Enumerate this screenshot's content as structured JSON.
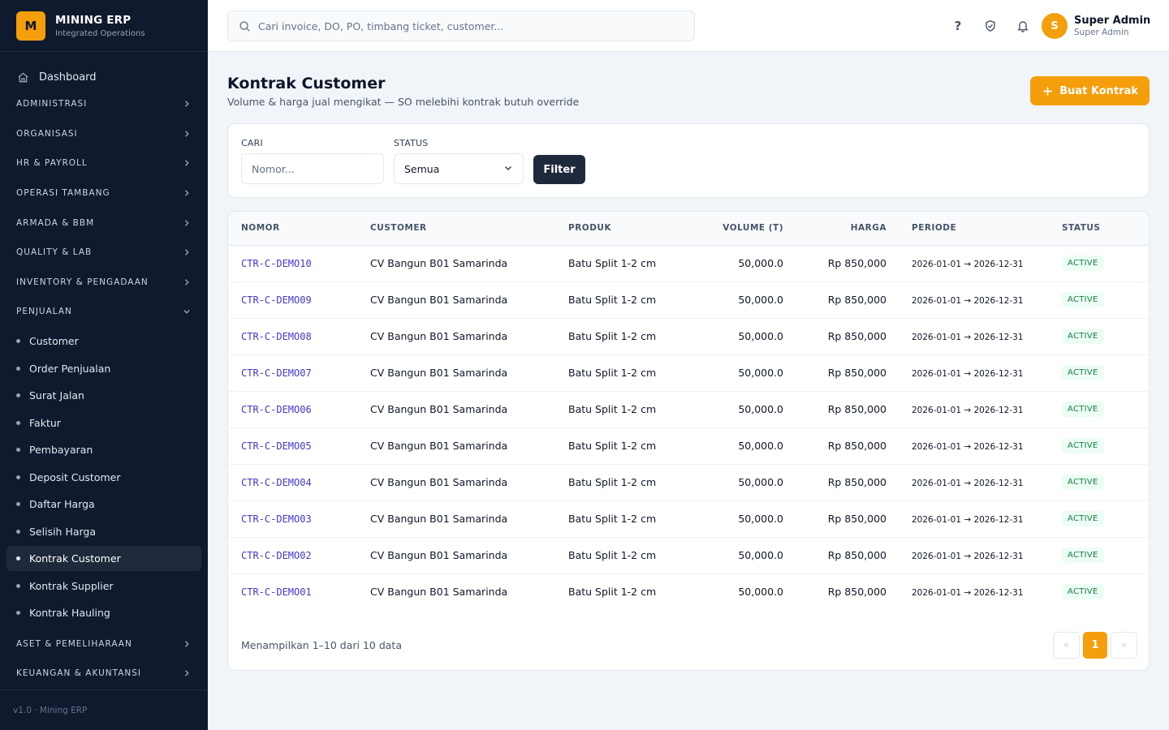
{
  "brand": {
    "logo_letter": "M",
    "name": "MINING ERP",
    "subtitle": "Integrated Operations"
  },
  "sidebar": {
    "dashboard_label": "Dashboard",
    "groups": [
      {
        "label": "ADMINISTRASI"
      },
      {
        "label": "ORGANISASI"
      },
      {
        "label": "HR & PAYROLL"
      },
      {
        "label": "OPERASI TAMBANG"
      },
      {
        "label": "ARMADA & BBM"
      },
      {
        "label": "QUALITY & LAB"
      },
      {
        "label": "INVENTORY & PENGADAAN"
      },
      {
        "label": "PENJUALAN"
      },
      {
        "label": "ASET & PEMELIHARAAN"
      },
      {
        "label": "KEUANGAN & AKUNTANSI"
      }
    ],
    "penjualan_items": [
      {
        "label": "Customer"
      },
      {
        "label": "Order Penjualan"
      },
      {
        "label": "Surat Jalan"
      },
      {
        "label": "Faktur"
      },
      {
        "label": "Pembayaran"
      },
      {
        "label": "Deposit Customer"
      },
      {
        "label": "Daftar Harga"
      },
      {
        "label": "Selisih Harga"
      },
      {
        "label": "Kontrak Customer"
      },
      {
        "label": "Kontrak Supplier"
      },
      {
        "label": "Kontrak Hauling"
      }
    ],
    "active_item": "Kontrak Customer",
    "footer": "v1.0 · Mining ERP"
  },
  "topbar": {
    "search_placeholder": "Cari invoice, DO, PO, timbang ticket, customer...",
    "icons": [
      "help-icon",
      "shield-check-icon",
      "bell-icon"
    ],
    "user": {
      "initial": "S",
      "name": "Super Admin",
      "role": "Super Admin"
    }
  },
  "page": {
    "title": "Kontrak Customer",
    "subtitle": "Volume & harga jual mengikat — SO melebihi kontrak butuh override",
    "create_button": "Buat Kontrak"
  },
  "filter": {
    "search_label": "CARI",
    "search_placeholder": "Nomor...",
    "status_label": "STATUS",
    "status_value": "Semua",
    "filter_button": "Filter"
  },
  "table": {
    "columns": [
      "NOMOR",
      "CUSTOMER",
      "PRODUK",
      "VOLUME (T)",
      "HARGA",
      "PERIODE",
      "STATUS"
    ],
    "rows": [
      {
        "nomor": "CTR-C-DEMO10",
        "customer": "CV Bangun B01 Samarinda",
        "produk": "Batu Split 1-2 cm",
        "volume": "50,000.0",
        "harga": "Rp 850,000",
        "periode": "2026-01-01 → 2026-12-31",
        "status": "ACTIVE"
      },
      {
        "nomor": "CTR-C-DEMO09",
        "customer": "CV Bangun B01 Samarinda",
        "produk": "Batu Split 1-2 cm",
        "volume": "50,000.0",
        "harga": "Rp 850,000",
        "periode": "2026-01-01 → 2026-12-31",
        "status": "ACTIVE"
      },
      {
        "nomor": "CTR-C-DEMO08",
        "customer": "CV Bangun B01 Samarinda",
        "produk": "Batu Split 1-2 cm",
        "volume": "50,000.0",
        "harga": "Rp 850,000",
        "periode": "2026-01-01 → 2026-12-31",
        "status": "ACTIVE"
      },
      {
        "nomor": "CTR-C-DEMO07",
        "customer": "CV Bangun B01 Samarinda",
        "produk": "Batu Split 1-2 cm",
        "volume": "50,000.0",
        "harga": "Rp 850,000",
        "periode": "2026-01-01 → 2026-12-31",
        "status": "ACTIVE"
      },
      {
        "nomor": "CTR-C-DEMO06",
        "customer": "CV Bangun B01 Samarinda",
        "produk": "Batu Split 1-2 cm",
        "volume": "50,000.0",
        "harga": "Rp 850,000",
        "periode": "2026-01-01 → 2026-12-31",
        "status": "ACTIVE"
      },
      {
        "nomor": "CTR-C-DEMO05",
        "customer": "CV Bangun B01 Samarinda",
        "produk": "Batu Split 1-2 cm",
        "volume": "50,000.0",
        "harga": "Rp 850,000",
        "periode": "2026-01-01 → 2026-12-31",
        "status": "ACTIVE"
      },
      {
        "nomor": "CTR-C-DEMO04",
        "customer": "CV Bangun B01 Samarinda",
        "produk": "Batu Split 1-2 cm",
        "volume": "50,000.0",
        "harga": "Rp 850,000",
        "periode": "2026-01-01 → 2026-12-31",
        "status": "ACTIVE"
      },
      {
        "nomor": "CTR-C-DEMO03",
        "customer": "CV Bangun B01 Samarinda",
        "produk": "Batu Split 1-2 cm",
        "volume": "50,000.0",
        "harga": "Rp 850,000",
        "periode": "2026-01-01 → 2026-12-31",
        "status": "ACTIVE"
      },
      {
        "nomor": "CTR-C-DEMO02",
        "customer": "CV Bangun B01 Samarinda",
        "produk": "Batu Split 1-2 cm",
        "volume": "50,000.0",
        "harga": "Rp 850,000",
        "periode": "2026-01-01 → 2026-12-31",
        "status": "ACTIVE"
      },
      {
        "nomor": "CTR-C-DEMO01",
        "customer": "CV Bangun B01 Samarinda",
        "produk": "Batu Split 1-2 cm",
        "volume": "50,000.0",
        "harga": "Rp 850,000",
        "periode": "2026-01-01 → 2026-12-31",
        "status": "ACTIVE"
      }
    ],
    "summary": "Menampilkan 1–10 dari 10 data",
    "pagination": {
      "prev": "«",
      "current": "1",
      "next": "»"
    }
  },
  "colors": {
    "sidebar_bg": "#0f1a2e",
    "accent": "#f59e0b",
    "link": "#4338ca",
    "status_active": "#15803d"
  }
}
